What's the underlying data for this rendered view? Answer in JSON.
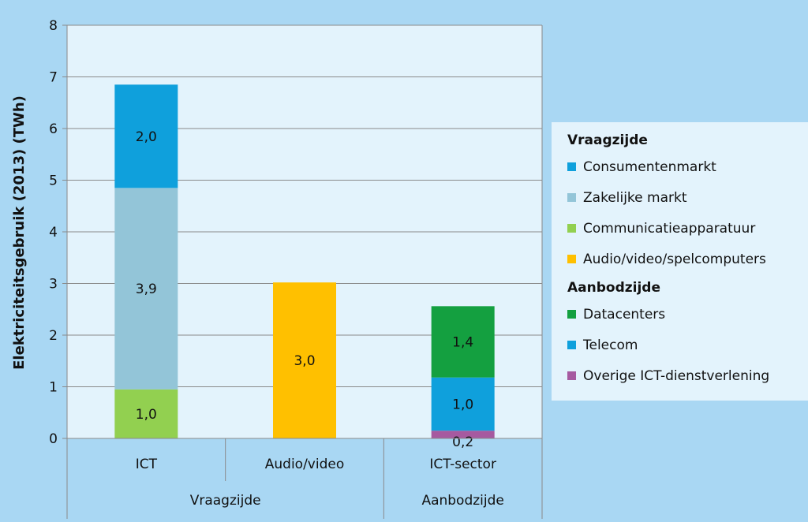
{
  "chart_data": {
    "type": "bar",
    "stacked": true,
    "ylabel": "Elektriciteitsgebruik (2013) (TWh)",
    "ylim": [
      0,
      8
    ],
    "yticks": [
      "0",
      "1",
      "2",
      "3",
      "4",
      "5",
      "6",
      "7",
      "8"
    ],
    "grid": true,
    "categories": [
      "ICT",
      "Audio/video",
      "ICT-sector"
    ],
    "groups": [
      {
        "label": "Vraagzijde",
        "categories": [
          "ICT",
          "Audio/video"
        ]
      },
      {
        "label": "Aanbodzijde",
        "categories": [
          "ICT-sector"
        ]
      }
    ],
    "series": [
      {
        "name": "Communicatieapparatuur",
        "color": "#92d050",
        "values": [
          0.95,
          0,
          0
        ],
        "labels": [
          "1,0",
          "",
          ""
        ]
      },
      {
        "name": "Zakelijke markt",
        "color": "#93c5d8",
        "values": [
          3.9,
          0,
          0
        ],
        "labels": [
          "3,9",
          "",
          ""
        ]
      },
      {
        "name": "Consumentenmarkt",
        "color": "#0fa0dc",
        "values": [
          2.0,
          0,
          0
        ],
        "labels": [
          "2,0",
          "",
          ""
        ]
      },
      {
        "name": "Audio/video/spelcomputers",
        "color": "#ffc000",
        "values": [
          0,
          3.02,
          0
        ],
        "labels": [
          "",
          "3,0",
          ""
        ]
      },
      {
        "name": "Overige ICT-dienstverlening",
        "color": "#a65aa0",
        "values": [
          0,
          0,
          0.15
        ],
        "labels": [
          "",
          "",
          "0,2"
        ]
      },
      {
        "name": "Telecom",
        "color": "#0fa0dc",
        "values": [
          0,
          0,
          1.03
        ],
        "labels": [
          "",
          "",
          "1,0"
        ]
      },
      {
        "name": "Datacenters",
        "color": "#14a040",
        "values": [
          0,
          0,
          1.38
        ],
        "labels": [
          "",
          "",
          "1,4"
        ]
      }
    ],
    "legend": {
      "position": "right",
      "groups": [
        {
          "title": "Vraagzijde",
          "items": [
            {
              "label": "Consumentenmarkt",
              "color": "#0fa0dc"
            },
            {
              "label": "Zakelijke markt",
              "color": "#93c5d8"
            },
            {
              "label": "Communicatieapparatuur",
              "color": "#92d050"
            },
            {
              "label": "Audio/video/spelcomputers",
              "color": "#ffc000"
            }
          ]
        },
        {
          "title": "Aanbodzijde",
          "items": [
            {
              "label": "Datacenters",
              "color": "#14a040"
            },
            {
              "label": "Telecom",
              "color": "#0fa0dc"
            },
            {
              "label": "Overige ICT-dienstverlening",
              "color": "#a65aa0"
            }
          ]
        }
      ]
    }
  }
}
